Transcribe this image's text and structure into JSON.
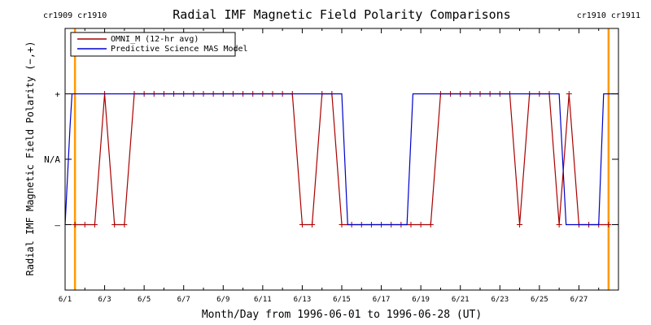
{
  "chart_data": {
    "type": "line",
    "title": "Radial IMF Magnetic Field Polarity Comparisons",
    "xlabel": "Month/Day from 1996-06-01 to 1996-06-28 (UT)",
    "ylabel": "Radial IMF Magnetic Field Polarity (−,+)",
    "xlim": [
      0,
      28
    ],
    "ylim": [
      -2,
      2
    ],
    "x_tick_values": [
      0,
      2,
      4,
      6,
      8,
      10,
      12,
      14,
      16,
      18,
      20,
      22,
      24,
      26
    ],
    "x_tick_labels": [
      "6/1",
      "6/3",
      "6/5",
      "6/7",
      "6/9",
      "6/11",
      "6/13",
      "6/15",
      "6/17",
      "6/19",
      "6/21",
      "6/23",
      "6/25",
      "6/27"
    ],
    "y_tick_values": [
      -1,
      0,
      1
    ],
    "y_tick_labels": [
      "–",
      "N/A",
      "+"
    ],
    "legend_position": "top-left",
    "colors": {
      "omni": "#aa0000",
      "model": "#0000cc",
      "carrington": "#ff9900"
    },
    "carrington_markers": [
      {
        "x": 0.5,
        "label_left": "cr1909",
        "label_right": "cr1910"
      },
      {
        "x": 27.5,
        "label_left": "cr1910",
        "label_right": "cr1911"
      }
    ],
    "series": [
      {
        "name": "OMNI_M (12-hr avg)",
        "marker": "+",
        "x": [
          0.5,
          1.0,
          1.5,
          2.0,
          2.5,
          3.0,
          3.5,
          4.0,
          4.5,
          5.0,
          5.5,
          6.0,
          6.5,
          7.0,
          7.5,
          8.0,
          8.5,
          9.0,
          9.5,
          10.0,
          10.5,
          11.0,
          11.5,
          12.0,
          12.5,
          13.0,
          13.5,
          14.0,
          14.5,
          15.0,
          15.5,
          16.0,
          16.5,
          17.0,
          17.5,
          18.0,
          18.5,
          19.0,
          19.5,
          20.0,
          20.5,
          21.0,
          21.5,
          22.0,
          22.5,
          23.0,
          23.5,
          24.0,
          24.5,
          25.0,
          25.5,
          26.0,
          26.5,
          27.0,
          27.5
        ],
        "values": [
          -1,
          -1,
          -1,
          1,
          -1,
          -1,
          1,
          1,
          1,
          1,
          1,
          1,
          1,
          1,
          1,
          1,
          1,
          1,
          1,
          1,
          1,
          1,
          1,
          -1,
          -1,
          1,
          1,
          -1,
          -1,
          -1,
          -1,
          -1,
          -1,
          -1,
          -1,
          -1,
          -1,
          1,
          1,
          1,
          1,
          1,
          1,
          1,
          1,
          -1,
          1,
          1,
          1,
          -1,
          1,
          -1,
          -1,
          -1,
          -1
        ]
      },
      {
        "name": "Predictive Science MAS Model",
        "x": [
          0.0,
          0.25,
          0.35,
          14.0,
          14.3,
          17.3,
          17.6,
          25.0,
          25.35,
          27.0,
          27.25,
          28.0
        ],
        "values": [
          -1,
          0.5,
          1,
          1,
          -1,
          -1,
          1,
          1,
          -1,
          -1,
          1,
          1
        ]
      }
    ]
  }
}
